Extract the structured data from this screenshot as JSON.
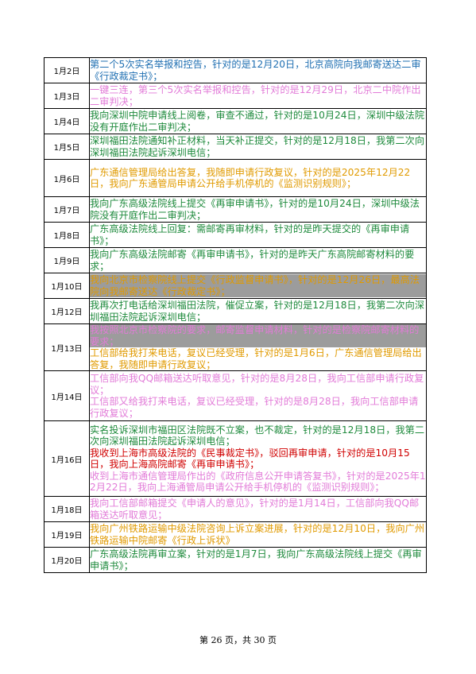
{
  "colors": {
    "blue": "#1f6fb2",
    "pink": "#e27bd8",
    "green": "#1e8a3c",
    "orange": "#e09a00",
    "red": "#d00000",
    "gray_highlight": "#9c9c9c"
  },
  "rows": [
    {
      "date": "1月2日",
      "entries": [
        {
          "text": "第二个5次实名举报和控告，针对的是12月20日，北京高院向我邮寄送达二审《行政裁定书》；",
          "color": "#1f6fb2",
          "bg": ""
        }
      ]
    },
    {
      "date": "1月3日",
      "entries": [
        {
          "text": "一键三连，第三个5次实名举报和控告，针对的是12月29日，北京二中院作出二审判决；",
          "color": "#e27bd8",
          "bg": ""
        }
      ]
    },
    {
      "date": "1月4日",
      "entries": [
        {
          "text": "我向深圳中院申请线上阅卷，审查不通过，针对的是10月24日，深圳中级法院没有开庭作出二审判决；",
          "color": "#1e8a3c",
          "bg": ""
        }
      ]
    },
    {
      "date": "1月5日",
      "entries": [
        {
          "text": "深圳福田法院通知补正材料，当天补正提交，针对的是12月18日，我第二次向深圳福田法院起诉深圳电信；",
          "color": "#1e8a3c",
          "bg": ""
        }
      ]
    },
    {
      "date": "1月6日",
      "entries": [
        {
          "text": "广东通信管理局给出答复，我随即申请行政复议，针对的是2025年12月22日，我向广东通管局申请公开给手机停机的《监测识别规则》；",
          "color": "#e09a00",
          "bg": ""
        }
      ]
    },
    {
      "date": "1月7日",
      "entries": [
        {
          "text": "我向广东高级法院线上提交《再审申请书》，针对的是10月24日，深圳中级法院没有开庭作出二审判决；",
          "color": "#1e8a3c",
          "bg": ""
        }
      ]
    },
    {
      "date": "1月8日",
      "entries": [
        {
          "text": "广东高级法院线上回复：需邮寄再审材料，针对的是昨天提交的《再审申请书》；",
          "color": "#1e8a3c",
          "bg": ""
        }
      ]
    },
    {
      "date": "1月9日",
      "entries": [
        {
          "text": "我向广东高级法院邮寄《再审申请书》，针对的是昨天广东高院邮寄材料的要求；",
          "color": "#1e8a3c",
          "bg": ""
        }
      ]
    },
    {
      "date": "1月10日",
      "entries": [
        {
          "text": "我向北京市检察院线上提交《行政监督申请书》，针对的是12月26日，最高法院向我邮寄送达《行政裁定书》；",
          "color": "#e09a00",
          "bg": "gray"
        }
      ]
    },
    {
      "date": "1月12日",
      "entries": [
        {
          "text": "我再次打电话给深圳福田法院，催促立案，针对的是12月18日，我第二次向深圳福田法院起诉深圳电信；",
          "color": "#1e8a3c",
          "bg": ""
        }
      ]
    },
    {
      "date": "1月13日",
      "entries": [
        {
          "text": "我按照北京市检察院的要求，邮寄监督申请材料，针对的是检察院邮寄材料的要求；",
          "color": "#e27bd8",
          "bg": "gray"
        },
        {
          "text": "工信部给我打来电话，复议已经受理，针对的是1月6日，广东通信管理局给出答复，我随即申请行政复议；",
          "color": "#e09a00",
          "bg": ""
        }
      ]
    },
    {
      "date": "1月14日",
      "entries": [
        {
          "text": "工信部向我QQ邮箱送达听取意见，针对的是8月28日，我向工信部申请行政复议；",
          "color": "#e27bd8",
          "bg": ""
        },
        {
          "text": "工信部又给我打来电话，复议已经受理，针对的是8月28日，我向工信部申请行政复议；",
          "color": "#e27bd8",
          "bg": ""
        }
      ]
    },
    {
      "date": "1月16日",
      "entries": [
        {
          "text": "实名投诉深圳市福田区法院既不立案，也不裁定，针对的是12月18日，我第二次向深圳福田法院起诉深圳电信；",
          "color": "#1e8a3c",
          "bg": ""
        },
        {
          "text": "我收到上海市高级法院的《民事裁定书》，驳回再审申请，针对的是10月15日，我向上海高院邮寄《再审申请书》；",
          "color": "#d00000",
          "bg": ""
        },
        {
          "text": "收到上海市通信管理局作出的《政府信息公开申请答复书》，针对的是2025年12月22日，我向上海通管局申请公开给手机停机的《监测识别规则》；",
          "color": "#e27bd8",
          "bg": ""
        }
      ]
    },
    {
      "date": "1月18日",
      "entries": [
        {
          "text": "我向工信部邮箱提交《申请人的意见》，针对的是1月14日，工信部向我QQ邮箱送达听取意见；",
          "color": "#e27bd8",
          "bg": ""
        }
      ]
    },
    {
      "date": "1月19日",
      "entries": [
        {
          "text": "我向广州铁路运输中级法院咨询上诉立案进展，针对的是12月10日，我向广州铁路运输中院邮寄《行政上诉状》",
          "color": "#e09a00",
          "bg": ""
        }
      ]
    },
    {
      "date": "1月20日",
      "entries": [
        {
          "text": "广东高级法院再审立案，针对的是1月7日，我向广东高级法院线上提交《再审申请书》；",
          "color": "#1e8a3c",
          "bg": ""
        }
      ]
    }
  ],
  "footer": {
    "text": "第 26 页，共 30 页"
  }
}
